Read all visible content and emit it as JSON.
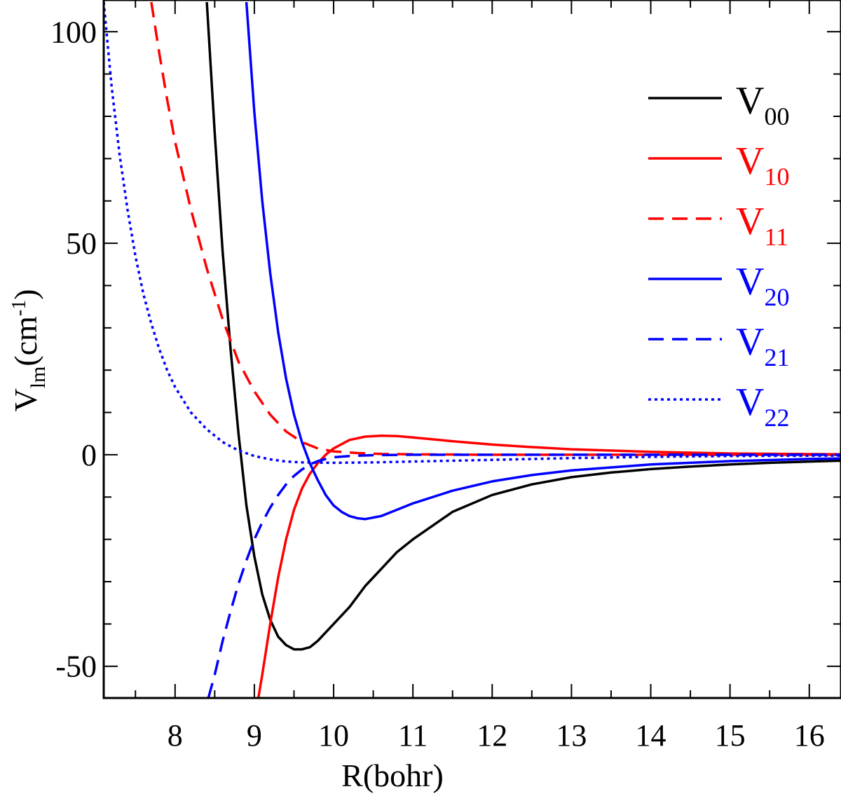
{
  "chart_data": {
    "type": "line",
    "title": "",
    "xlabel": "R(bohr)",
    "ylabel": {
      "main": "V",
      "sub": "lm",
      "unit_prefix": "(cm",
      "unit_sup": "-1",
      "unit_suffix": ")"
    },
    "xlim": [
      7.1,
      16.4
    ],
    "ylim": [
      -57.5,
      107.5
    ],
    "x_ticks": [
      8,
      9,
      10,
      11,
      12,
      13,
      14,
      15,
      16
    ],
    "x_tick_labels": [
      "8",
      "9",
      "10",
      "11",
      "12",
      "13",
      "14",
      "15",
      "16"
    ],
    "y_ticks": [
      -50,
      0,
      50,
      100
    ],
    "y_tick_labels": [
      "-50",
      "0",
      "50",
      "100"
    ],
    "y_minor_step": 10,
    "x_minor_step": 0.5,
    "legend_position": "top-right",
    "series": [
      {
        "name": "V",
        "sub": "00",
        "color": "#000000",
        "dash": "solid",
        "x": [
          8.4,
          8.5,
          8.6,
          8.7,
          8.8,
          8.9,
          9.0,
          9.1,
          9.2,
          9.3,
          9.4,
          9.5,
          9.6,
          9.7,
          9.8,
          9.9,
          10.0,
          10.2,
          10.4,
          10.6,
          10.8,
          11.0,
          11.5,
          12.0,
          12.5,
          13.0,
          13.5,
          14.0,
          14.5,
          15.0,
          15.5,
          16.0,
          16.4
        ],
        "y": [
          107,
          76,
          48,
          25,
          5,
          -12,
          -24,
          -33,
          -39,
          -43,
          -45,
          -46,
          -46,
          -45.5,
          -44,
          -42,
          -40,
          -36,
          -31,
          -27,
          -23,
          -20,
          -13.5,
          -9.5,
          -7,
          -5.3,
          -4.2,
          -3.4,
          -2.8,
          -2.3,
          -1.9,
          -1.6,
          -1.4
        ]
      },
      {
        "name": "V",
        "sub": "10",
        "color": "#ff0000",
        "dash": "solid",
        "x": [
          9.05,
          9.1,
          9.2,
          9.3,
          9.4,
          9.5,
          9.6,
          9.7,
          9.8,
          9.9,
          10.0,
          10.2,
          10.4,
          10.6,
          10.8,
          11.0,
          11.5,
          12.0,
          12.5,
          13.0,
          14.0,
          15.0,
          16.4
        ],
        "y": [
          -57.5,
          -52,
          -40,
          -29,
          -20,
          -13,
          -8,
          -4.5,
          -2,
          0,
          1.5,
          3.5,
          4.3,
          4.5,
          4.4,
          4.1,
          3.2,
          2.4,
          1.8,
          1.3,
          0.7,
          0.3,
          0.1
        ]
      },
      {
        "name": "V",
        "sub": "11",
        "color": "#ff0000",
        "dash": "dashed",
        "x": [
          7.7,
          7.8,
          7.9,
          8.0,
          8.2,
          8.4,
          8.6,
          8.8,
          9.0,
          9.2,
          9.4,
          9.6,
          9.8,
          10.0,
          10.3,
          10.6,
          11.0,
          12.0,
          13.0,
          16.4
        ],
        "y": [
          107,
          95,
          84,
          74,
          58,
          44,
          32,
          22,
          15,
          9.5,
          5.5,
          3,
          1.5,
          0.8,
          0.4,
          0.2,
          0.1,
          0,
          0,
          0
        ]
      },
      {
        "name": "V",
        "sub": "20",
        "color": "#0000ff",
        "dash": "solid",
        "x": [
          8.9,
          9.0,
          9.1,
          9.2,
          9.3,
          9.4,
          9.5,
          9.6,
          9.7,
          9.8,
          9.9,
          10.0,
          10.1,
          10.2,
          10.3,
          10.4,
          10.6,
          10.8,
          11.0,
          11.5,
          12.0,
          12.5,
          13.0,
          14.0,
          15.0,
          16.0,
          16.4
        ],
        "y": [
          107,
          81,
          60,
          43,
          29,
          18,
          9.5,
          3,
          -2,
          -6,
          -9.5,
          -12,
          -13.5,
          -14.5,
          -15,
          -15.2,
          -14.5,
          -13,
          -11.5,
          -8.5,
          -6.3,
          -4.8,
          -3.7,
          -2.3,
          -1.5,
          -1,
          -0.9
        ]
      },
      {
        "name": "V",
        "sub": "21",
        "color": "#0000ff",
        "dash": "dashed",
        "x": [
          8.42,
          8.5,
          8.6,
          8.7,
          8.8,
          8.9,
          9.0,
          9.1,
          9.2,
          9.3,
          9.4,
          9.5,
          9.6,
          9.7,
          9.8,
          9.9,
          10.0,
          10.2,
          10.5,
          11.0,
          12.0,
          14.0,
          16.4
        ],
        "y": [
          -57.5,
          -52,
          -44,
          -37,
          -30.5,
          -25,
          -20,
          -16,
          -12.5,
          -9.5,
          -7,
          -5,
          -3.5,
          -2.3,
          -1.5,
          -1,
          -0.6,
          -0.3,
          -0.1,
          0,
          0,
          0,
          0
        ]
      },
      {
        "name": "V",
        "sub": "22",
        "color": "#0000ff",
        "dash": "dotted",
        "x": [
          7.1,
          7.2,
          7.3,
          7.4,
          7.5,
          7.6,
          7.7,
          7.8,
          7.9,
          8.0,
          8.2,
          8.4,
          8.6,
          8.8,
          9.0,
          9.2,
          9.4,
          9.6,
          10.0,
          10.5,
          11.0,
          12.0,
          13.0,
          14.0,
          15.0,
          16.4
        ],
        "y": [
          107,
          87,
          71,
          58,
          47,
          38,
          31,
          25,
          20,
          16,
          10,
          6,
          3,
          1,
          -0.3,
          -1.1,
          -1.6,
          -1.8,
          -1.9,
          -1.8,
          -1.6,
          -1.2,
          -0.8,
          -0.5,
          -0.3,
          -0.2
        ]
      }
    ]
  }
}
